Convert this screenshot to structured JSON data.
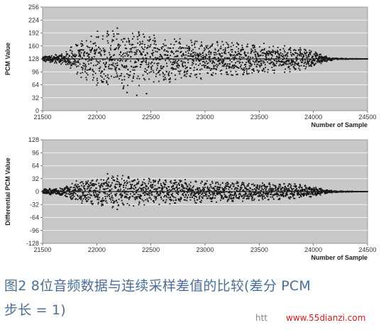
{
  "chart_data": [
    {
      "type": "scatter",
      "ylabel": "PCM Value",
      "xlabel": "Number of Sample",
      "xlim": [
        21500,
        24500
      ],
      "ylim": [
        0,
        256
      ],
      "xticks": [
        "21500",
        "22000",
        "22500",
        "23000",
        "23500",
        "24000",
        "24500"
      ],
      "yticks": [
        "256",
        "224",
        "192",
        "160",
        "128",
        "96",
        "64",
        "32",
        "0"
      ],
      "grid": true,
      "baseline": 128,
      "envelope": {
        "x": [
          21500,
          21700,
          21800,
          22000,
          22200,
          22300,
          22500,
          22800,
          23000,
          23300,
          23500,
          23800,
          24000,
          24100,
          24200,
          24500
        ],
        "amplitude": [
          8,
          14,
          40,
          70,
          76,
          72,
          64,
          54,
          50,
          44,
          40,
          32,
          22,
          8,
          2,
          0
        ]
      },
      "outliers_y": [
        196,
        204,
        45,
        38,
        42
      ]
    },
    {
      "type": "scatter",
      "ylabel": "Differential PCM Value",
      "xlabel": "Number of Sample",
      "xlim": [
        21500,
        24500
      ],
      "ylim": [
        -128,
        128
      ],
      "xticks": [
        "21500",
        "22000",
        "22500",
        "23000",
        "23500",
        "24000",
        "24500"
      ],
      "yticks": [
        "128",
        "96",
        "64",
        "32",
        "0",
        "-32",
        "-64",
        "-96",
        "-128"
      ],
      "grid": true,
      "baseline": 0,
      "envelope": {
        "x": [
          21500,
          21700,
          21800,
          22000,
          22200,
          22300,
          22500,
          22800,
          23000,
          23300,
          23500,
          23800,
          24000,
          24100,
          24200,
          24500
        ],
        "amplitude": [
          6,
          12,
          26,
          36,
          42,
          38,
          34,
          30,
          28,
          26,
          24,
          20,
          14,
          6,
          2,
          0
        ]
      },
      "outliers_y": [
        44,
        -44
      ]
    }
  ],
  "caption": {
    "line1": "图2  8位音频数据与连续采样差值的比较(差分 PCM",
    "line2": "步长 = 1)"
  },
  "watermark": {
    "partial": "htt",
    "url": "www.55dianzi.com"
  },
  "colors": {
    "plot_bg": "#c8c8c8",
    "grid": "#ffffff",
    "marker": "#111111",
    "caption": "#4a6f97",
    "watermark_url": "#d11a1a"
  }
}
